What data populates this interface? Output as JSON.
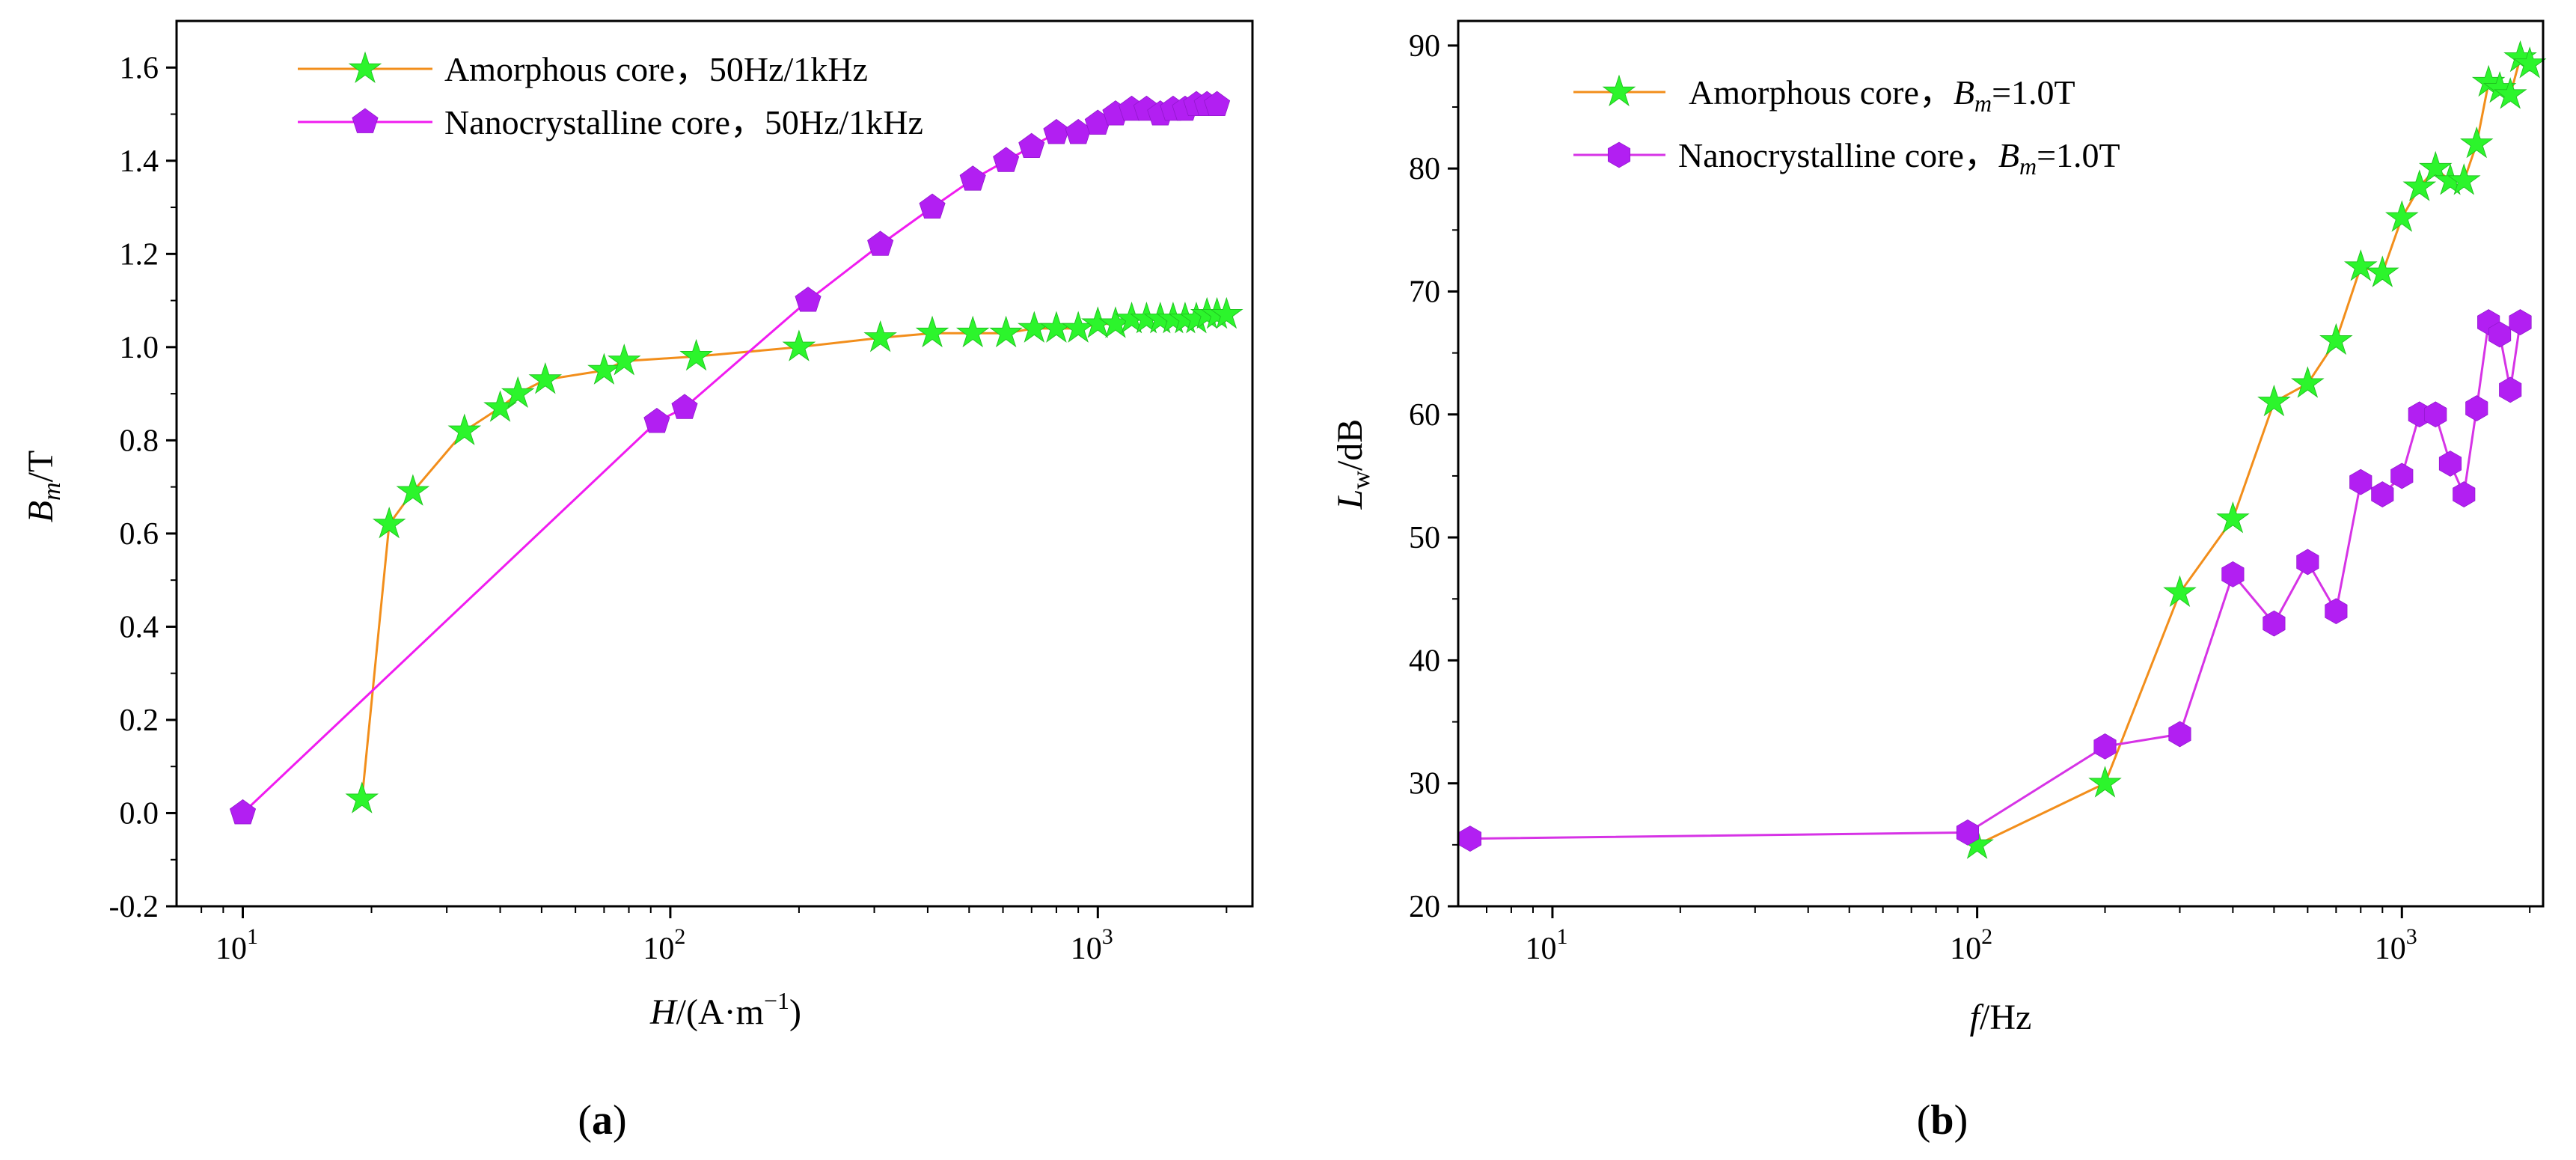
{
  "colors": {
    "amorphous_line": "#F28E1B",
    "amorphous_marker": "#2CF52C",
    "amorphous_marker_edge": "#1FBF1F",
    "nano_line_a": "#F01CF0",
    "nano_line_b": "#D633E6",
    "nano_marker": "#B21FF2",
    "nano_marker_edge": "#8E16C9",
    "axis": "#000000",
    "background": "#FFFFFF"
  },
  "chart_data": [
    {
      "type": "line",
      "panel": "a",
      "caption_open": "(",
      "caption_letter": "a",
      "caption_close": ")",
      "xscale": "log",
      "xlim": [
        7.0,
        2300
      ],
      "ylim": [
        -0.2,
        1.7
      ],
      "ylabel": {
        "main": "B",
        "sub": "m",
        "rest": "/T"
      },
      "xlabel": {
        "main": "H",
        "rest": "/(A·m",
        "sup": "−1",
        "close": ")"
      },
      "xticks": [
        {
          "value": 10,
          "base": "10",
          "exp": "1"
        },
        {
          "value": 100,
          "base": "10",
          "exp": "2"
        },
        {
          "value": 1000,
          "base": "10",
          "exp": "3"
        }
      ],
      "yticks": [
        "-0.2",
        "0.0",
        "0.2",
        "0.4",
        "0.6",
        "0.8",
        "1.0",
        "1.2",
        "1.4",
        "1.6"
      ],
      "legend_position": "top",
      "series": [
        {
          "name": "Amorphous core，50Hz/1kHz",
          "marker": "star",
          "x": [
            19,
            22,
            25,
            33,
            40,
            44,
            51,
            70,
            78,
            115,
            200,
            310,
            410,
            510,
            610,
            710,
            800,
            900,
            1000,
            1100,
            1200,
            1300,
            1400,
            1500,
            1600,
            1700,
            1800,
            1900,
            2000
          ],
          "y": [
            0.03,
            0.62,
            0.69,
            0.82,
            0.87,
            0.9,
            0.93,
            0.95,
            0.97,
            0.98,
            1.0,
            1.02,
            1.03,
            1.03,
            1.03,
            1.04,
            1.04,
            1.04,
            1.05,
            1.05,
            1.06,
            1.06,
            1.06,
            1.06,
            1.06,
            1.06,
            1.07,
            1.07,
            1.07
          ]
        },
        {
          "name": "Nanocrystalline core，50Hz/1kHz",
          "marker": "pentagon",
          "x": [
            10,
            93,
            108,
            210,
            310,
            410,
            510,
            610,
            700,
            800,
            900,
            1000,
            1100,
            1200,
            1300,
            1400,
            1500,
            1600,
            1700,
            1800,
            1900
          ],
          "y": [
            0.0,
            0.84,
            0.87,
            1.1,
            1.22,
            1.3,
            1.36,
            1.4,
            1.43,
            1.46,
            1.46,
            1.48,
            1.5,
            1.51,
            1.51,
            1.5,
            1.51,
            1.51,
            1.52,
            1.52,
            1.52
          ]
        }
      ]
    },
    {
      "type": "line",
      "panel": "b",
      "caption_open": "(",
      "caption_letter": "b",
      "caption_close": ")",
      "xscale": "log",
      "xlim": [
        6.0,
        2150
      ],
      "ylim": [
        20,
        92
      ],
      "ylabel": {
        "main": "L",
        "sub": "w",
        "rest": "/dB"
      },
      "xlabel": {
        "main": "f",
        "rest": "/Hz"
      },
      "xticks": [
        {
          "value": 10,
          "base": "10",
          "exp": "1"
        },
        {
          "value": 100,
          "base": "10",
          "exp": "2"
        },
        {
          "value": 1000,
          "base": "10",
          "exp": "3"
        }
      ],
      "yticks": [
        "20",
        "30",
        "40",
        "50",
        "60",
        "70",
        "80",
        "90"
      ],
      "legend_position": "top-left",
      "series": [
        {
          "name_prefix": "Amorphous core，",
          "name_var": "B",
          "name_sub": "m",
          "name_suffix": "=1.0T",
          "marker": "star",
          "x": [
            100,
            200,
            300,
            400,
            500,
            600,
            700,
            800,
            900,
            1000,
            1100,
            1200,
            1300,
            1400,
            1500,
            1600,
            1700,
            1800,
            1900,
            2000
          ],
          "y": [
            25,
            30,
            45.5,
            51.5,
            61,
            62.5,
            66,
            72,
            71.5,
            76,
            78.5,
            80,
            79,
            79,
            82,
            87,
            86.5,
            86,
            89,
            88.5
          ]
        },
        {
          "name_prefix": "Nanocrystalline core，",
          "name_var": "B",
          "name_sub": "m",
          "name_suffix": "=1.0T",
          "marker": "hexagon",
          "x": [
            6.4,
            95,
            200,
            300,
            400,
            500,
            600,
            700,
            800,
            900,
            1000,
            1100,
            1200,
            1300,
            1400,
            1500,
            1600,
            1700,
            1800,
            1900
          ],
          "y": [
            25.5,
            26,
            33,
            34,
            47,
            43,
            48,
            44,
            54.5,
            53.5,
            55,
            60,
            60,
            56,
            53.5,
            60.5,
            67.5,
            66.5,
            62,
            67.5
          ]
        }
      ]
    }
  ]
}
